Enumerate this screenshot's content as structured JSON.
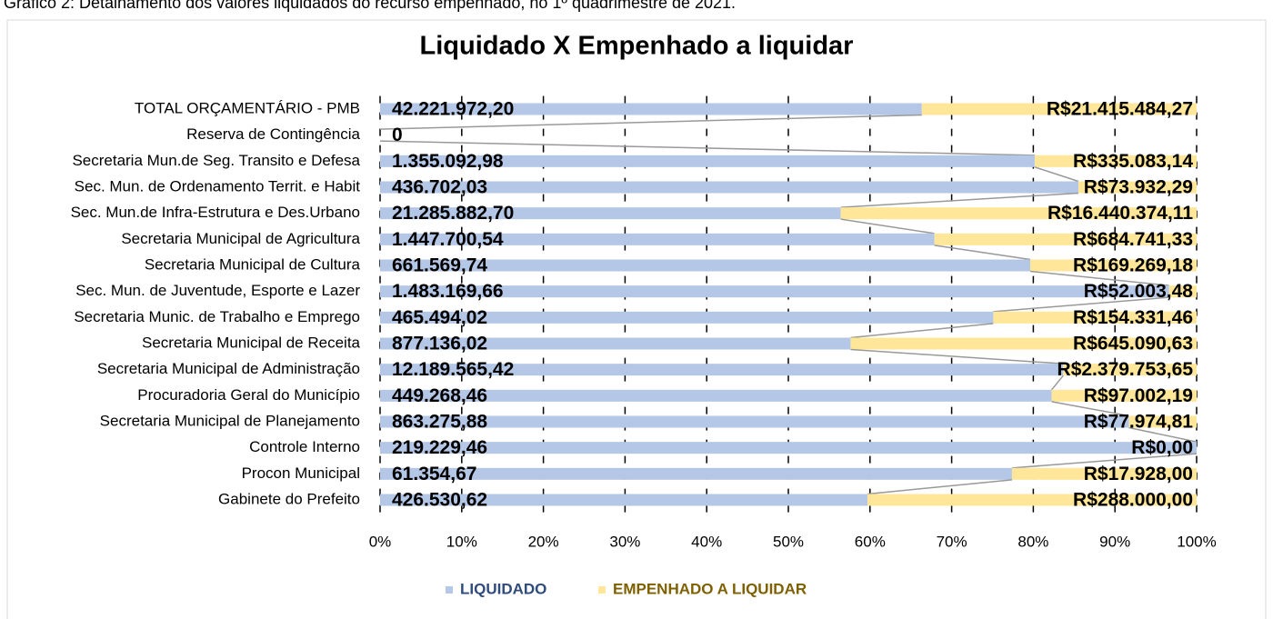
{
  "caption": "Gráfico 2: Detalhamento dos valores liquidados do recurso empenhado, no 1º quadrimestre de 2021.",
  "chart_data": {
    "type": "bar",
    "orientation": "horizontal",
    "stacking": "percent",
    "title": "Liquidado X Empenhado a liquidar",
    "categories": [
      "TOTAL ORÇAMENTÁRIO - PMB",
      "Reserva de Contingência",
      "Secretaria Mun.de Seg. Transito e Defesa",
      "Sec. Mun. de Ordenamento Territ. e Habit",
      "Sec. Mun.de Infra-Estrutura e Des.Urbano",
      "Secretaria Municipal de Agricultura",
      "Secretaria Municipal de Cultura",
      "Sec. Mun. de Juventude, Esporte e Lazer",
      "Secretaria Munic. de Trabalho e Emprego",
      "Secretaria Municipal de Receita",
      "Secretaria Municipal de Administração",
      "Procuradoria Geral do Município",
      "Secretaria Municipal de Planejamento",
      "Controle Interno",
      "Procon Municipal",
      "Gabinete do Prefeito"
    ],
    "series": [
      {
        "name": "LIQUIDADO",
        "color": "#b4c7e7",
        "values": [
          42221972.2,
          0,
          1355092.98,
          436702.03,
          21285882.7,
          1447700.54,
          661569.74,
          1483169.66,
          465494.02,
          877136.02,
          12189565.42,
          449268.46,
          863275.88,
          219229.46,
          61354.67,
          426530.62
        ],
        "value_labels": [
          "42.221.972,20",
          "0",
          "1.355.092,98",
          "436.702,03",
          "21.285.882,70",
          "1.447.700,54",
          "661.569,74",
          "1.483.169,66",
          "465.494,02",
          "877.136,02",
          "12.189.565,42",
          "449.268,46",
          "863.275,88",
          "219.229,46",
          "61.354,67",
          "426.530,62"
        ]
      },
      {
        "name": "EMPENHADO A LIQUIDAR",
        "color": "#ffe699",
        "values": [
          21415484.27,
          0,
          335083.14,
          73932.29,
          16440374.11,
          684741.33,
          169269.18,
          52003.48,
          154331.46,
          645090.63,
          2379753.65,
          97002.19,
          77974.81,
          0,
          17928.0,
          288000.0
        ],
        "value_labels": [
          "R$21.415.484,27",
          null,
          "R$335.083,14",
          "R$73.932,29",
          "R$16.440.374,11",
          "R$684.741,33",
          "R$169.269,18",
          "R$52.003,48",
          "R$154.331,46",
          "R$645.090,63",
          "R$2.379.753,65",
          "R$97.002,19",
          "R$77.974,81",
          "R$0,00",
          "R$17.928,00",
          "R$288.000,00"
        ]
      }
    ],
    "xlim": [
      0,
      100
    ],
    "xticks": [
      {
        "value": 0,
        "label": "0%"
      },
      {
        "value": 10,
        "label": "10%"
      },
      {
        "value": 20,
        "label": "20%"
      },
      {
        "value": 30,
        "label": "30%"
      },
      {
        "value": 40,
        "label": "40%"
      },
      {
        "value": 50,
        "label": "50%"
      },
      {
        "value": 60,
        "label": "60%"
      },
      {
        "value": 70,
        "label": "70%"
      },
      {
        "value": 80,
        "label": "80%"
      },
      {
        "value": 90,
        "label": "90%"
      },
      {
        "value": 100,
        "label": "100%"
      }
    ],
    "grid": true,
    "legend": "bottom"
  }
}
